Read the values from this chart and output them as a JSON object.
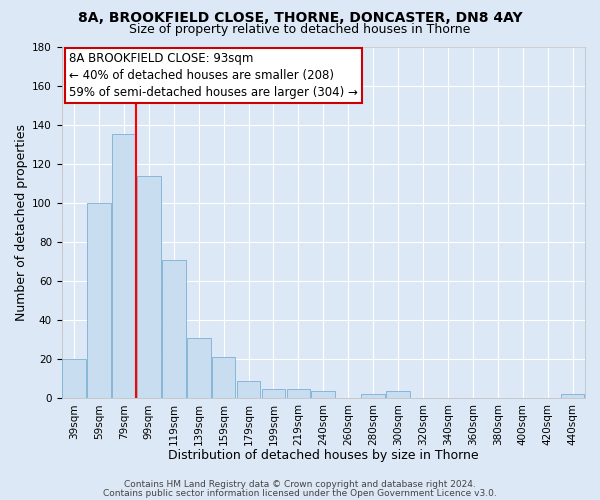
{
  "title": "8A, BROOKFIELD CLOSE, THORNE, DONCASTER, DN8 4AY",
  "subtitle": "Size of property relative to detached houses in Thorne",
  "xlabel": "Distribution of detached houses by size in Thorne",
  "ylabel": "Number of detached properties",
  "bin_labels": [
    "39sqm",
    "59sqm",
    "79sqm",
    "99sqm",
    "119sqm",
    "139sqm",
    "159sqm",
    "179sqm",
    "199sqm",
    "219sqm",
    "240sqm",
    "260sqm",
    "280sqm",
    "300sqm",
    "320sqm",
    "340sqm",
    "360sqm",
    "380sqm",
    "400sqm",
    "420sqm",
    "440sqm"
  ],
  "bar_values": [
    20,
    100,
    135,
    114,
    71,
    31,
    21,
    9,
    5,
    5,
    4,
    0,
    2,
    4,
    0,
    0,
    0,
    0,
    0,
    0,
    2
  ],
  "bar_color": "#c9ddf0",
  "bar_edge_color": "#7aafd4",
  "ylim": [
    0,
    180
  ],
  "yticks": [
    0,
    20,
    40,
    60,
    80,
    100,
    120,
    140,
    160,
    180
  ],
  "annotation_text": "8A BROOKFIELD CLOSE: 93sqm\n← 40% of detached houses are smaller (208)\n59% of semi-detached houses are larger (304) →",
  "annotation_box_color": "#ffffff",
  "annotation_box_edge": "#cc0000",
  "footer_line1": "Contains HM Land Registry data © Crown copyright and database right 2024.",
  "footer_line2": "Contains public sector information licensed under the Open Government Licence v3.0.",
  "background_color": "#dce8f5",
  "plot_bg_color": "#dce8f5",
  "grid_color": "#ffffff",
  "title_fontsize": 10,
  "subtitle_fontsize": 9,
  "axis_label_fontsize": 9,
  "tick_fontsize": 7.5,
  "annotation_fontsize": 8.5,
  "footer_fontsize": 6.5
}
